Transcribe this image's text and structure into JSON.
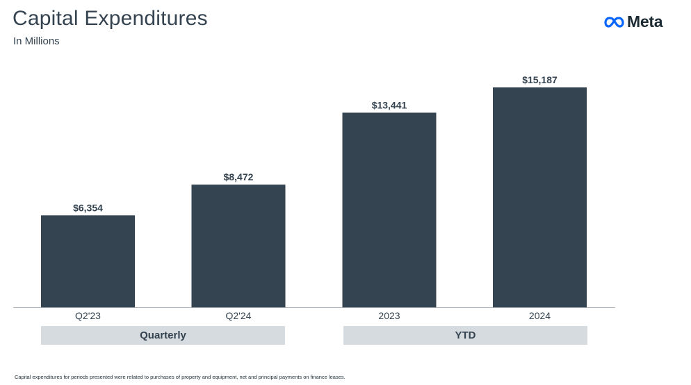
{
  "header": {
    "title": "Capital Expenditures",
    "subtitle": "In Millions",
    "logo_text": "Meta",
    "logo_icon": "meta-infinity-icon"
  },
  "chart_data": {
    "type": "bar",
    "categories": [
      "Q2'23",
      "Q2'24",
      "2023",
      "2024"
    ],
    "values": [
      6354,
      8472,
      13441,
      15187
    ],
    "data_labels": [
      "$6,354",
      "$8,472",
      "$13,441",
      "$15,187"
    ],
    "groups": [
      {
        "label": "Quarterly",
        "categories": [
          "Q2'23",
          "Q2'24"
        ]
      },
      {
        "label": "YTD",
        "categories": [
          "2023",
          "2024"
        ]
      }
    ],
    "ylim": [
      0,
      15187
    ],
    "grid": false,
    "legend": "none",
    "bar_color": "#344551",
    "axis_color": "#a9b1b8",
    "group_box_color": "#d6dbe0"
  },
  "footnote": "Capital expenditures for periods presented were related to purchases of property and equipment, net and principal payments on finance leases."
}
